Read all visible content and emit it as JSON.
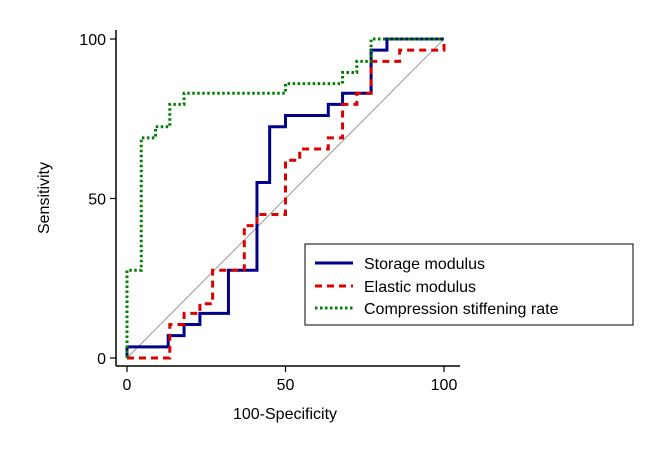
{
  "chart_data": {
    "type": "line",
    "title": "",
    "xlabel": "100-Specificity",
    "ylabel": "Sensitivity",
    "xlim": [
      0,
      100
    ],
    "ylim": [
      0,
      100
    ],
    "xticks": [
      0,
      50,
      100
    ],
    "yticks": [
      0,
      50,
      100
    ],
    "legend_position": "bottom-right",
    "reference_line": {
      "name": "Chance diagonal",
      "x": [
        0,
        100
      ],
      "y": [
        0,
        100
      ],
      "color": "#808080"
    },
    "series": [
      {
        "name": "Storage modulus",
        "color": "#00008B",
        "dash": "solid",
        "x": [
          0,
          0,
          13,
          13,
          18,
          18,
          23,
          23,
          32,
          32,
          41,
          41,
          45,
          45,
          50,
          50,
          63.5,
          63.5,
          68,
          68,
          77,
          77,
          82,
          82,
          100
        ],
        "y": [
          0,
          3.5,
          3.5,
          7,
          7,
          10.5,
          10.5,
          14,
          14,
          27.5,
          27.5,
          55,
          55,
          72.5,
          72.5,
          76,
          76,
          79.5,
          79.5,
          83,
          83,
          96.5,
          96.5,
          100,
          100
        ]
      },
      {
        "name": "Elastic modulus",
        "color": "#DD0000",
        "dash": "dashed",
        "x": [
          0,
          0,
          13.5,
          13.5,
          18,
          18,
          23,
          23,
          27,
          27,
          37,
          37,
          41,
          41,
          50,
          50,
          54.5,
          54.5,
          63.5,
          63.5,
          68,
          68,
          72.5,
          72.5,
          77,
          77,
          82,
          82,
          86,
          86,
          100,
          100
        ],
        "y": [
          0,
          0,
          0,
          10.5,
          10.5,
          14,
          14,
          17,
          17,
          27.5,
          27.5,
          41.5,
          41.5,
          45,
          45,
          62,
          62,
          65.5,
          65.5,
          69,
          69,
          79.5,
          79.5,
          83,
          83,
          93,
          93,
          93,
          93,
          96.5,
          96.5,
          100
        ]
      },
      {
        "name": "Compression stiffening rate",
        "color": "#008000",
        "dash": "dotted",
        "x": [
          0,
          0,
          4.5,
          4.5,
          9,
          9,
          13.5,
          13.5,
          18,
          18,
          50,
          50,
          54.5,
          54.5,
          68,
          68,
          72.5,
          72.5,
          77,
          77,
          100
        ],
        "y": [
          0,
          27.5,
          27.5,
          69,
          69,
          72.5,
          72.5,
          79.5,
          79.5,
          83,
          83,
          86,
          86,
          86,
          86,
          89.5,
          89.5,
          93,
          93,
          100,
          100
        ]
      }
    ]
  }
}
